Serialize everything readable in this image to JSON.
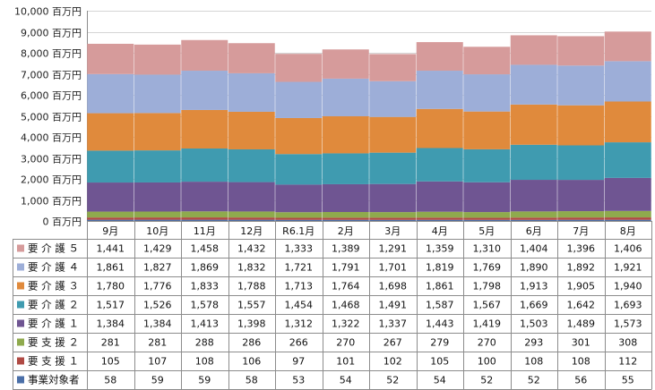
{
  "chart_data": {
    "type": "bar",
    "stacked": true,
    "y_unit": "百万円",
    "ylim": [
      0,
      10000
    ],
    "yticks": [
      0,
      1000,
      2000,
      3000,
      4000,
      5000,
      6000,
      7000,
      8000,
      9000,
      10000
    ],
    "ytick_labels": [
      "0 百万円",
      "1,000 百万円",
      "2,000 百万円",
      "3,000 百万円",
      "4,000 百万円",
      "5,000 百万円",
      "6,000 百万円",
      "7,000 百万円",
      "8,000 百万円",
      "9,000 百万円",
      "10,000 百万円"
    ],
    "grid": true,
    "legend": "data-table-left",
    "categories": [
      "9月",
      "10月",
      "11月",
      "12月",
      "R6.1月",
      "2月",
      "3月",
      "4月",
      "5月",
      "6月",
      "7月",
      "8月"
    ],
    "series": [
      {
        "name": "事業対象者",
        "color": "#4a6fa8",
        "values": [
          58,
          59,
          59,
          58,
          53,
          54,
          52,
          54,
          52,
          52,
          56,
          55
        ],
        "labels": [
          "58",
          "59",
          "59",
          "58",
          "53",
          "54",
          "52",
          "54",
          "52",
          "52",
          "56",
          "55"
        ]
      },
      {
        "name": "要 支 援 １",
        "color": "#b04a44",
        "values": [
          105,
          107,
          108,
          106,
          97,
          101,
          102,
          105,
          100,
          108,
          108,
          112
        ],
        "labels": [
          "105",
          "107",
          "108",
          "106",
          "97",
          "101",
          "102",
          "105",
          "100",
          "108",
          "108",
          "112"
        ]
      },
      {
        "name": "要 支 援 ２",
        "color": "#8faa4d",
        "values": [
          281,
          281,
          288,
          286,
          266,
          270,
          267,
          279,
          270,
          293,
          301,
          308
        ],
        "labels": [
          "281",
          "281",
          "288",
          "286",
          "266",
          "270",
          "267",
          "279",
          "270",
          "293",
          "301",
          "308"
        ]
      },
      {
        "name": "要 介 護 １",
        "color": "#6f5592",
        "values": [
          1384,
          1384,
          1413,
          1398,
          1312,
          1322,
          1337,
          1443,
          1419,
          1503,
          1489,
          1573
        ],
        "labels": [
          "1,384",
          "1,384",
          "1,413",
          "1,398",
          "1,312",
          "1,322",
          "1,337",
          "1,443",
          "1,419",
          "1,503",
          "1,489",
          "1,573"
        ]
      },
      {
        "name": "要 介 護 ２",
        "color": "#3f9bb0",
        "values": [
          1517,
          1526,
          1578,
          1557,
          1454,
          1468,
          1491,
          1587,
          1567,
          1669,
          1642,
          1693
        ],
        "labels": [
          "1,517",
          "1,526",
          "1,578",
          "1,557",
          "1,454",
          "1,468",
          "1,491",
          "1,587",
          "1,567",
          "1,669",
          "1,642",
          "1,693"
        ]
      },
      {
        "name": "要 介 護 ３",
        "color": "#e08a3c",
        "values": [
          1780,
          1776,
          1833,
          1788,
          1713,
          1764,
          1698,
          1861,
          1798,
          1913,
          1905,
          1940
        ],
        "labels": [
          "1,780",
          "1,776",
          "1,833",
          "1,788",
          "1,713",
          "1,764",
          "1,698",
          "1,861",
          "1,798",
          "1,913",
          "1,905",
          "1,940"
        ]
      },
      {
        "name": "要 介 護 ４",
        "color": "#9daed8",
        "values": [
          1861,
          1827,
          1869,
          1832,
          1721,
          1791,
          1701,
          1819,
          1769,
          1890,
          1892,
          1921
        ],
        "labels": [
          "1,861",
          "1,827",
          "1,869",
          "1,832",
          "1,721",
          "1,791",
          "1,701",
          "1,819",
          "1,769",
          "1,890",
          "1,892",
          "1,921"
        ]
      },
      {
        "name": "要 介 護 ５",
        "color": "#d69b9b",
        "values": [
          1441,
          1429,
          1458,
          1432,
          1333,
          1389,
          1291,
          1359,
          1310,
          1404,
          1396,
          1406
        ],
        "labels": [
          "1,441",
          "1,429",
          "1,458",
          "1,432",
          "1,333",
          "1,389",
          "1,291",
          "1,359",
          "1,310",
          "1,404",
          "1,396",
          "1,406"
        ]
      }
    ]
  }
}
